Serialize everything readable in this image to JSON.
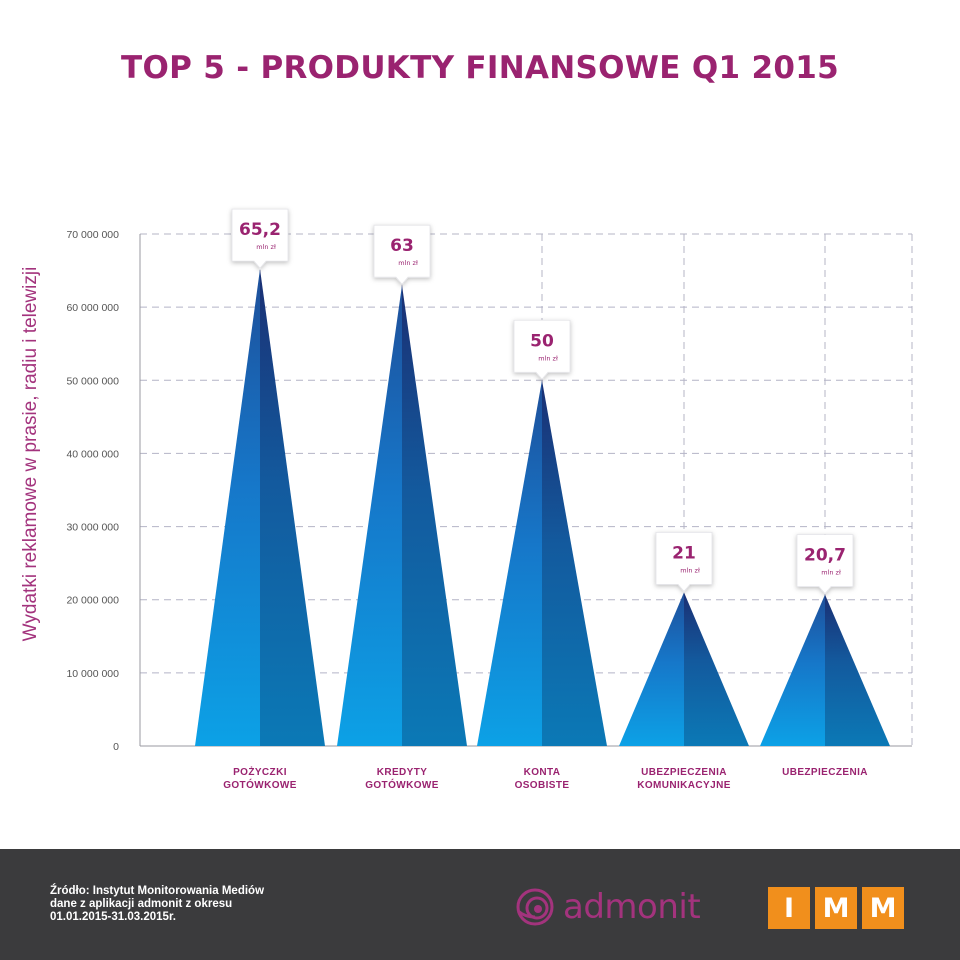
{
  "title": "TOP 5 - PRODUKTY FINANSOWE Q1 2015",
  "chart_data": {
    "type": "bar",
    "title": "TOP 5 - PRODUKTY FINANSOWE Q1 2015",
    "ylabel": "Wydatki reklamowe w prasie, radiu i telewizji",
    "xlabel": "",
    "ylim": [
      0,
      70000000
    ],
    "y_ticks": [
      "0",
      "10 000 000",
      "20 000 000",
      "30 000 000",
      "40 000 000",
      "50 000 000",
      "60 000 000",
      "70 000 000"
    ],
    "y_tick_values": [
      0,
      10000000,
      20000000,
      30000000,
      40000000,
      50000000,
      60000000,
      70000000
    ],
    "grid": true,
    "categories": [
      [
        "POŻYCZKI",
        "GOTÓWKOWE"
      ],
      [
        "KREDYTY",
        "GOTÓWKOWE"
      ],
      [
        "KONTA",
        "OSOBISTE"
      ],
      [
        "UBEZPIECZENIA",
        "KOMUNIKACYJNE"
      ],
      [
        "UBEZPIECZENIA"
      ]
    ],
    "values": [
      65200000,
      63000000,
      50000000,
      21000000,
      20700000
    ],
    "data_labels": [
      "65,2",
      "63",
      "50",
      "21",
      "20,7"
    ],
    "data_label_unit": "mln zł",
    "colors": {
      "bar_light": "#1a9be0",
      "bar_dark": "#143d82",
      "title": "#9a2370",
      "category_label": "#9a2370",
      "grid": "#b4b4c6"
    }
  },
  "footer": {
    "source_lines": [
      "Źródło: Instytut Monitorowania Mediów",
      "dane z aplikacji admonit z okresu",
      "01.01.2015-31.03.2015r."
    ],
    "brand_admonit": "admonit",
    "brand_imm": [
      "I",
      "M",
      "M"
    ]
  }
}
